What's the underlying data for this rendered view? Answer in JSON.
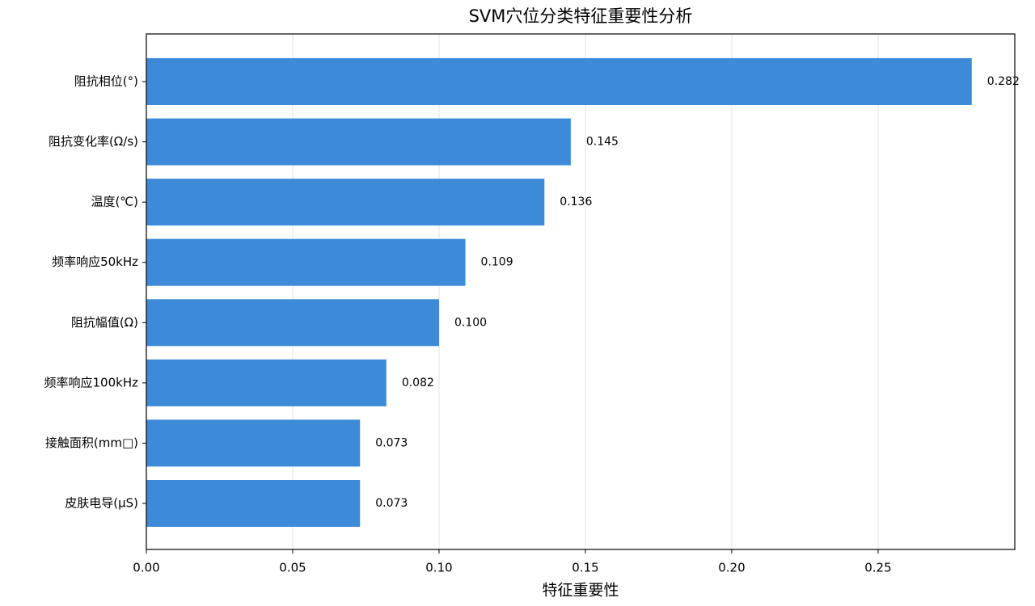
{
  "chart_data": {
    "type": "barh",
    "title": "SVM穴位分类特征重要性分析",
    "x_label": "特征重要性",
    "categories": [
      "阻抗相位(°)",
      "阻抗变化率(Ω/s)",
      "温度(℃)",
      "频率响应50kHz",
      "阻抗幅值(Ω)",
      "频率响应100kHz",
      "接触面积(mm□)",
      "皮肤电导(μS)"
    ],
    "values": [
      0.282,
      0.145,
      0.136,
      0.109,
      0.1,
      0.082,
      0.073,
      0.073
    ],
    "value_labels": [
      "0.282",
      "0.145",
      "0.136",
      "0.109",
      "0.100",
      "0.082",
      "0.073",
      "0.073"
    ],
    "color": "#3d8bd8",
    "xlim": [
      0,
      0.2967
    ],
    "xticks": [
      {
        "value": 0,
        "label": "0.00"
      },
      {
        "value": 0.05,
        "label": "0.05"
      },
      {
        "value": 0.1,
        "label": "0.10"
      },
      {
        "value": 0.15,
        "label": "0.15"
      },
      {
        "value": 0.2,
        "label": "0.20"
      },
      {
        "value": 0.25,
        "label": "0.25"
      }
    ],
    "grid": true
  }
}
